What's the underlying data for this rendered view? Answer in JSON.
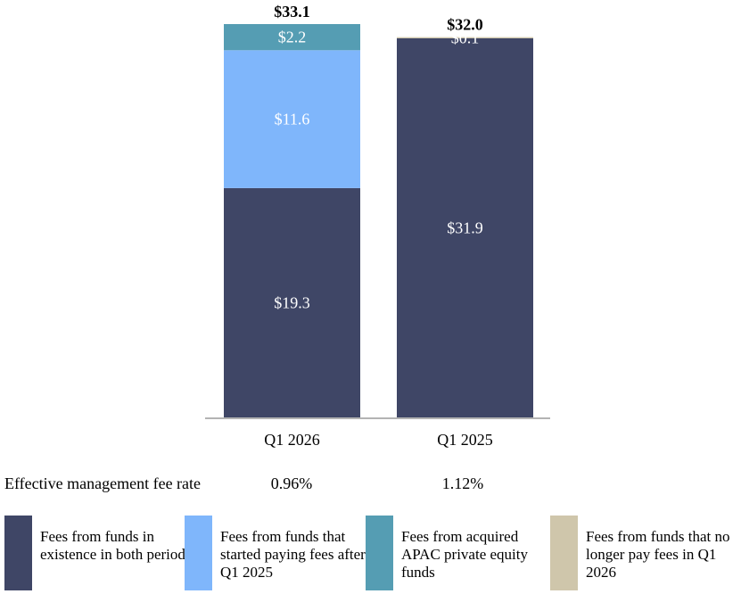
{
  "chart_data": {
    "type": "bar",
    "stacked": true,
    "categories": [
      "Q1 2026",
      "Q1 2025"
    ],
    "series": [
      {
        "name": "Fees from funds in existence in both periods",
        "color": "#3f4666",
        "values": [
          19.3,
          31.9
        ],
        "labels": [
          "$19.3",
          "$31.9"
        ],
        "label_color": "#ffffff"
      },
      {
        "name": "Fees from funds that started paying fees after Q1 2025",
        "color": "#7fb6fb",
        "values": [
          11.6,
          0
        ],
        "labels": [
          "$11.6",
          ""
        ],
        "label_color": "#ffffff"
      },
      {
        "name": "Fees from acquired APAC private equity funds",
        "color": "#559db3",
        "values": [
          2.2,
          0
        ],
        "labels": [
          "$2.2",
          ""
        ],
        "label_color": "#ffffff"
      },
      {
        "name": "Fees from funds that no longer pay fees in Q1 2026",
        "color": "#cfc6ab",
        "values": [
          0,
          0.1
        ],
        "labels": [
          "",
          "$0.1"
        ],
        "label_color": "#ffffff"
      }
    ],
    "totals": [
      "$33.1",
      "$32.0"
    ],
    "ylim": [
      0,
      33.1
    ]
  },
  "fee_rate": {
    "label": "Effective management fee rate",
    "values": [
      "0.96%",
      "1.12%"
    ]
  },
  "legend": [
    {
      "text": "Fees from funds in existence in both periods",
      "color": "#3f4666"
    },
    {
      "text": "Fees from funds that started paying fees after Q1 2025",
      "color": "#7fb6fb"
    },
    {
      "text": "Fees from acquired APAC private equity funds",
      "color": "#559db3"
    },
    {
      "text": "Fees from funds that no longer pay fees in Q1 2026",
      "color": "#cfc6ab"
    }
  ]
}
